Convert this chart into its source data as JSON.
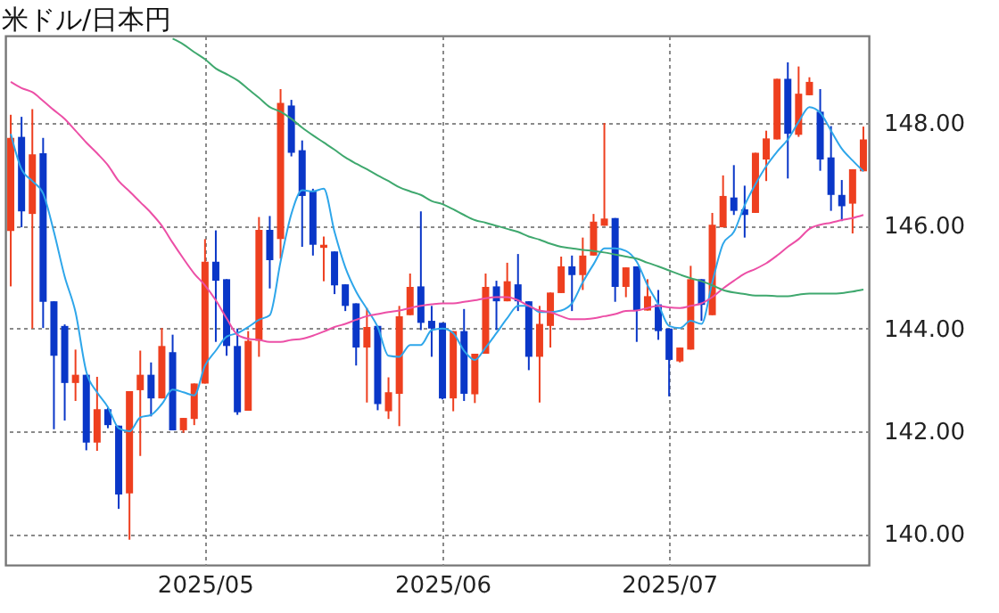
{
  "chart_data": {
    "type": "candlestick",
    "title": "米ドル/日本円",
    "categories": [
      null,
      null,
      null,
      null,
      null,
      null,
      null,
      null,
      null,
      null,
      null,
      null,
      null,
      null,
      null,
      null,
      null,
      null,
      "2025/05",
      null,
      null,
      null,
      null,
      null,
      null,
      null,
      null,
      null,
      null,
      null,
      null,
      null,
      null,
      null,
      null,
      null,
      null,
      null,
      null,
      null,
      "2025/06",
      null,
      null,
      null,
      null,
      null,
      null,
      null,
      null,
      null,
      null,
      null,
      null,
      null,
      null,
      null,
      null,
      null,
      null,
      null,
      null,
      "2025/07",
      null,
      null,
      null,
      null,
      null,
      null,
      null,
      null,
      null,
      null,
      null,
      null,
      null,
      null,
      null,
      null,
      null,
      null
    ],
    "ohlc": [
      [
        145.9,
        148.16,
        144.82,
        147.71
      ],
      [
        147.73,
        148.12,
        145.97,
        146.28
      ],
      [
        146.23,
        148.27,
        144.0,
        147.39
      ],
      [
        147.41,
        147.71,
        144.01,
        144.52
      ],
      [
        144.53,
        144.53,
        142.04,
        143.47
      ],
      [
        144.05,
        144.08,
        142.21,
        142.94
      ],
      [
        142.94,
        143.59,
        142.59,
        143.1
      ],
      [
        143.1,
        143.1,
        141.63,
        141.78
      ],
      [
        141.78,
        143.06,
        141.62,
        142.43
      ],
      [
        142.43,
        142.46,
        142.06,
        142.12
      ],
      [
        142.11,
        142.11,
        140.49,
        140.77
      ],
      [
        140.79,
        142.78,
        139.89,
        142.78
      ],
      [
        142.8,
        143.57,
        141.52,
        143.1
      ],
      [
        143.1,
        143.34,
        142.29,
        142.64
      ],
      [
        142.64,
        144.01,
        142.64,
        143.66
      ],
      [
        143.54,
        143.88,
        142.02,
        142.02
      ],
      [
        142.02,
        142.26,
        141.97,
        142.26
      ],
      [
        142.24,
        142.93,
        142.12,
        142.93
      ],
      [
        142.93,
        145.74,
        142.93,
        145.3
      ],
      [
        145.3,
        145.91,
        143.74,
        144.93
      ],
      [
        144.96,
        144.96,
        143.47,
        143.66
      ],
      [
        143.66,
        144.0,
        142.32,
        142.37
      ],
      [
        142.4,
        143.95,
        142.4,
        143.76
      ],
      [
        143.76,
        146.17,
        143.45,
        145.92
      ],
      [
        145.92,
        146.19,
        144.78,
        145.33
      ],
      [
        145.74,
        148.66,
        145.36,
        148.39
      ],
      [
        148.34,
        148.45,
        147.35,
        147.42
      ],
      [
        147.47,
        147.66,
        145.59,
        146.58
      ],
      [
        146.67,
        146.72,
        145.42,
        145.63
      ],
      [
        145.57,
        145.79,
        144.92,
        145.63
      ],
      [
        145.5,
        145.5,
        144.67,
        144.84
      ],
      [
        144.86,
        144.86,
        144.34,
        144.44
      ],
      [
        144.49,
        144.49,
        143.28,
        143.63
      ],
      [
        143.63,
        144.4,
        142.56,
        144.03
      ],
      [
        144.05,
        144.05,
        142.41,
        142.53
      ],
      [
        142.39,
        143.05,
        142.24,
        142.76
      ],
      [
        142.73,
        144.44,
        142.1,
        144.24
      ],
      [
        144.26,
        145.07,
        144.26,
        144.81
      ],
      [
        144.82,
        146.28,
        143.97,
        144.11
      ],
      [
        144.15,
        144.44,
        143.45,
        144.0
      ],
      [
        144.11,
        144.11,
        142.62,
        142.64
      ],
      [
        142.64,
        143.95,
        142.39,
        143.95
      ],
      [
        143.95,
        144.38,
        142.59,
        142.73
      ],
      [
        142.72,
        143.51,
        142.55,
        143.51
      ],
      [
        143.51,
        145.07,
        143.51,
        144.81
      ],
      [
        144.82,
        144.93,
        143.97,
        144.53
      ],
      [
        144.53,
        145.28,
        144.53,
        144.92
      ],
      [
        144.86,
        145.45,
        144.34,
        144.53
      ],
      [
        144.53,
        144.53,
        143.19,
        143.45
      ],
      [
        143.45,
        144.44,
        142.56,
        144.09
      ],
      [
        144.05,
        144.7,
        143.63,
        144.7
      ],
      [
        144.69,
        145.4,
        144.69,
        145.21
      ],
      [
        145.21,
        145.42,
        144.34,
        145.04
      ],
      [
        145.04,
        145.77,
        144.75,
        145.42
      ],
      [
        145.42,
        146.23,
        145.42,
        146.08
      ],
      [
        146.0,
        148.0,
        146.0,
        146.14
      ],
      [
        146.15,
        146.15,
        144.52,
        144.81
      ],
      [
        144.81,
        145.19,
        144.61,
        145.19
      ],
      [
        145.21,
        145.21,
        143.74,
        144.35
      ],
      [
        144.35,
        144.96,
        144.35,
        144.63
      ],
      [
        144.47,
        144.75,
        143.78,
        143.95
      ],
      [
        144.0,
        144.0,
        142.68,
        143.39
      ],
      [
        143.36,
        143.63,
        143.34,
        143.63
      ],
      [
        143.59,
        145.22,
        143.59,
        144.96
      ],
      [
        144.96,
        144.96,
        144.15,
        144.46
      ],
      [
        144.26,
        146.25,
        144.26,
        146.02
      ],
      [
        145.97,
        146.98,
        145.97,
        146.58
      ],
      [
        146.55,
        147.18,
        146.21,
        146.29
      ],
      [
        146.32,
        146.78,
        145.77,
        146.21
      ],
      [
        146.25,
        147.42,
        146.25,
        147.42
      ],
      [
        147.29,
        147.85,
        146.87,
        147.7
      ],
      [
        147.68,
        148.86,
        147.68,
        148.86
      ],
      [
        148.86,
        149.18,
        146.92,
        147.79
      ],
      [
        147.77,
        149.1,
        147.73,
        148.57
      ],
      [
        148.54,
        148.89,
        148.54,
        148.8
      ],
      [
        148.22,
        148.66,
        147.07,
        147.29
      ],
      [
        147.33,
        147.94,
        146.29,
        146.6
      ],
      [
        146.6,
        146.89,
        146.09,
        146.38
      ],
      [
        146.43,
        147.1,
        145.85,
        147.1
      ],
      [
        147.06,
        147.93,
        147.06,
        147.68
      ]
    ],
    "colors": [
      "#ee3f1f",
      "#0a37c8",
      "#ee3f1f",
      "#0a37c8",
      "#0a37c8",
      "#0a37c8",
      "#ee3f1f",
      "#0a37c8",
      "#ee3f1f",
      "#0a37c8",
      "#0a37c8",
      "#ee3f1f",
      "#ee3f1f",
      "#0a37c8",
      "#ee3f1f",
      "#0a37c8",
      "#ee3f1f",
      "#ee3f1f",
      "#ee3f1f",
      "#0a37c8",
      "#0a37c8",
      "#0a37c8",
      "#ee3f1f",
      "#ee3f1f",
      "#0a37c8",
      "#ee3f1f",
      "#0a37c8",
      "#0a37c8",
      "#0a37c8",
      "#ee3f1f",
      "#0a37c8",
      "#0a37c8",
      "#0a37c8",
      "#ee3f1f",
      "#0a37c8",
      "#ee3f1f",
      "#ee3f1f",
      "#ee3f1f",
      "#0a37c8",
      "#0a37c8",
      "#0a37c8",
      "#ee3f1f",
      "#0a37c8",
      "#ee3f1f",
      "#ee3f1f",
      "#0a37c8",
      "#ee3f1f",
      "#0a37c8",
      "#0a37c8",
      "#ee3f1f",
      "#ee3f1f",
      "#ee3f1f",
      "#0a37c8",
      "#ee3f1f",
      "#ee3f1f",
      "#ee3f1f",
      "#0a37c8",
      "#ee3f1f",
      "#0a37c8",
      "#ee3f1f",
      "#0a37c8",
      "#0a37c8",
      "#ee3f1f",
      "#ee3f1f",
      "#0a37c8",
      "#ee3f1f",
      "#ee3f1f",
      "#0a37c8",
      "#0a37c8",
      "#ee3f1f",
      "#ee3f1f",
      "#ee3f1f",
      "#0a37c8",
      "#ee3f1f",
      "#ee3f1f",
      "#0a37c8",
      "#0a37c8",
      "#0a37c8",
      "#ee3f1f",
      "#ee3f1f"
    ],
    "series": [
      {
        "type": "line",
        "color": "#2ea6ea",
        "values": [
          147.79,
          147.1,
          146.87,
          146.63,
          145.88,
          145.01,
          144.32,
          143.16,
          142.76,
          142.47,
          142.06,
          142.0,
          142.27,
          142.32,
          142.53,
          142.81,
          142.76,
          142.7,
          143.28,
          143.57,
          143.84,
          143.91,
          144.03,
          144.17,
          144.26,
          145.3,
          146.23,
          146.69,
          146.67,
          146.72,
          145.88,
          145.19,
          144.72,
          144.38,
          144.03,
          143.47,
          143.45,
          143.68,
          143.68,
          143.97,
          144.0,
          143.91,
          143.57,
          143.39,
          143.63,
          143.91,
          144.2,
          144.44,
          144.44,
          144.32,
          144.32,
          144.35,
          144.49,
          144.9,
          145.25,
          145.56,
          145.56,
          145.51,
          145.3,
          144.84,
          144.47,
          144.05,
          144.01,
          144.15,
          144.09,
          144.9,
          145.65,
          145.88,
          146.4,
          146.81,
          147.16,
          147.44,
          147.68,
          148.02,
          148.31,
          148.2,
          147.85,
          147.5,
          147.27,
          147.06
        ]
      },
      {
        "type": "line",
        "color": "#ec4fa6",
        "values": [
          148.8,
          148.68,
          148.6,
          148.43,
          148.25,
          148.08,
          147.85,
          147.62,
          147.41,
          147.18,
          146.87,
          146.67,
          146.46,
          146.25,
          146.0,
          145.67,
          145.36,
          145.07,
          144.84,
          144.55,
          144.2,
          143.88,
          143.8,
          143.78,
          143.74,
          143.74,
          143.78,
          143.8,
          143.86,
          143.94,
          144.03,
          144.09,
          144.17,
          144.24,
          144.28,
          144.32,
          144.35,
          144.4,
          144.44,
          144.47,
          144.49,
          144.49,
          144.52,
          144.55,
          144.59,
          144.61,
          144.61,
          144.55,
          144.44,
          144.35,
          144.32,
          144.24,
          144.18,
          144.18,
          144.2,
          144.24,
          144.28,
          144.34,
          144.35,
          144.4,
          144.44,
          144.41,
          144.4,
          144.44,
          144.49,
          144.61,
          144.78,
          144.93,
          145.07,
          145.16,
          145.27,
          145.42,
          145.59,
          145.74,
          145.94,
          146.02,
          146.06,
          146.11,
          146.15,
          146.21
        ]
      },
      {
        "type": "line",
        "color": "#3fa86e",
        "values": [
          null,
          null,
          null,
          null,
          null,
          null,
          null,
          null,
          null,
          null,
          null,
          null,
          null,
          null,
          null,
          149.64,
          149.53,
          149.38,
          149.24,
          149.06,
          148.95,
          148.83,
          148.66,
          148.49,
          148.31,
          148.22,
          148.08,
          147.91,
          147.76,
          147.62,
          147.48,
          147.33,
          147.21,
          147.1,
          146.98,
          146.87,
          146.75,
          146.67,
          146.6,
          146.48,
          146.42,
          146.32,
          146.21,
          146.11,
          146.06,
          146.0,
          145.94,
          145.88,
          145.79,
          145.73,
          145.65,
          145.59,
          145.56,
          145.53,
          145.51,
          145.48,
          145.44,
          145.4,
          145.36,
          145.28,
          145.21,
          145.13,
          145.05,
          144.98,
          144.92,
          144.84,
          144.75,
          144.7,
          144.67,
          144.64,
          144.64,
          144.63,
          144.63,
          144.66,
          144.68,
          144.68,
          144.68,
          144.69,
          144.72,
          144.76
        ]
      }
    ],
    "ylim": [
      139.4,
      149.7
    ],
    "yticks": [
      {
        "value": 140,
        "label": "140.00"
      },
      {
        "value": 142,
        "label": "142.00"
      },
      {
        "value": 144,
        "label": "144.00"
      },
      {
        "value": 146,
        "label": "146.00"
      },
      {
        "value": 148,
        "label": "148.00"
      }
    ],
    "grid": true
  }
}
